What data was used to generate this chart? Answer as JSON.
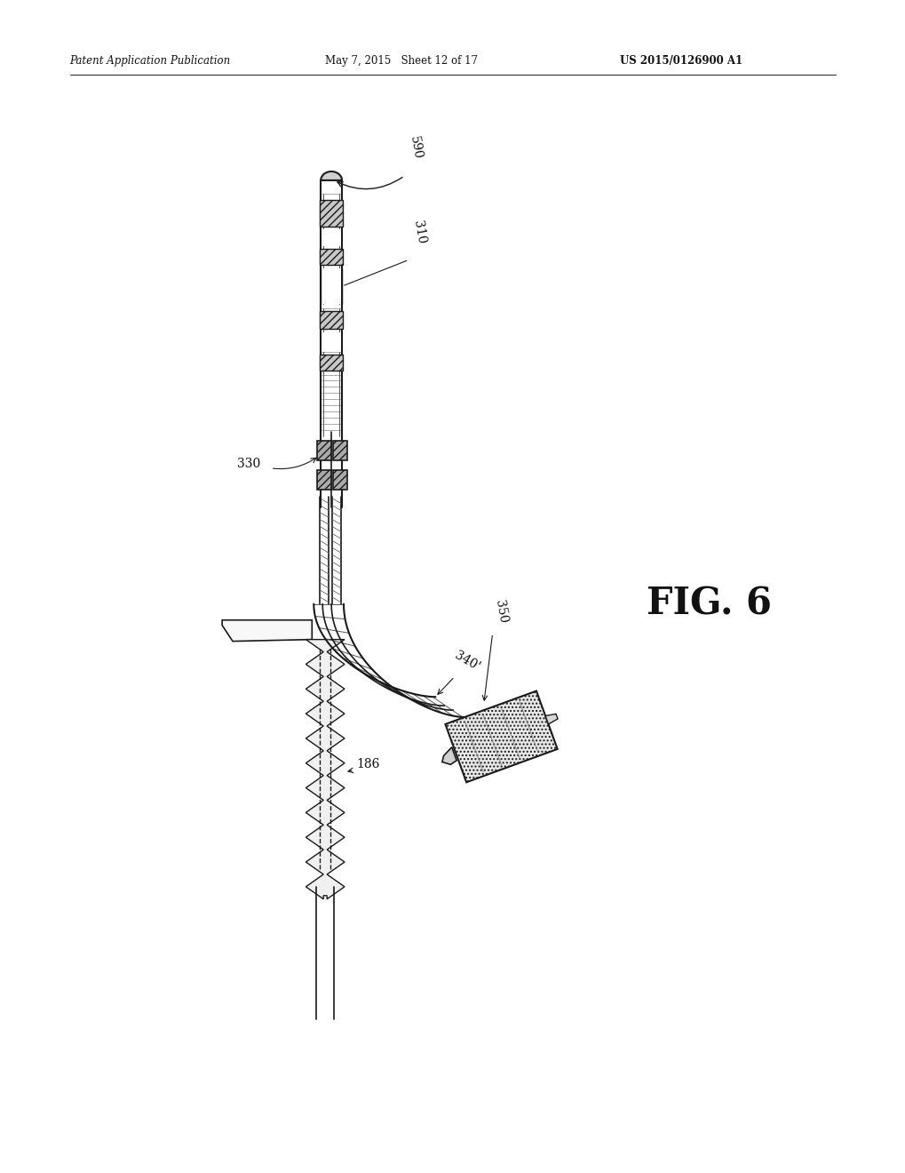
{
  "bg_color": "#ffffff",
  "header_left": "Patent Application Publication",
  "header_mid": "May 7, 2015   Sheet 12 of 17",
  "header_right": "US 2015/0126900 A1",
  "fig_label": "FIG. 6",
  "line_color": "#1a1a1a",
  "text_color": "#111111"
}
